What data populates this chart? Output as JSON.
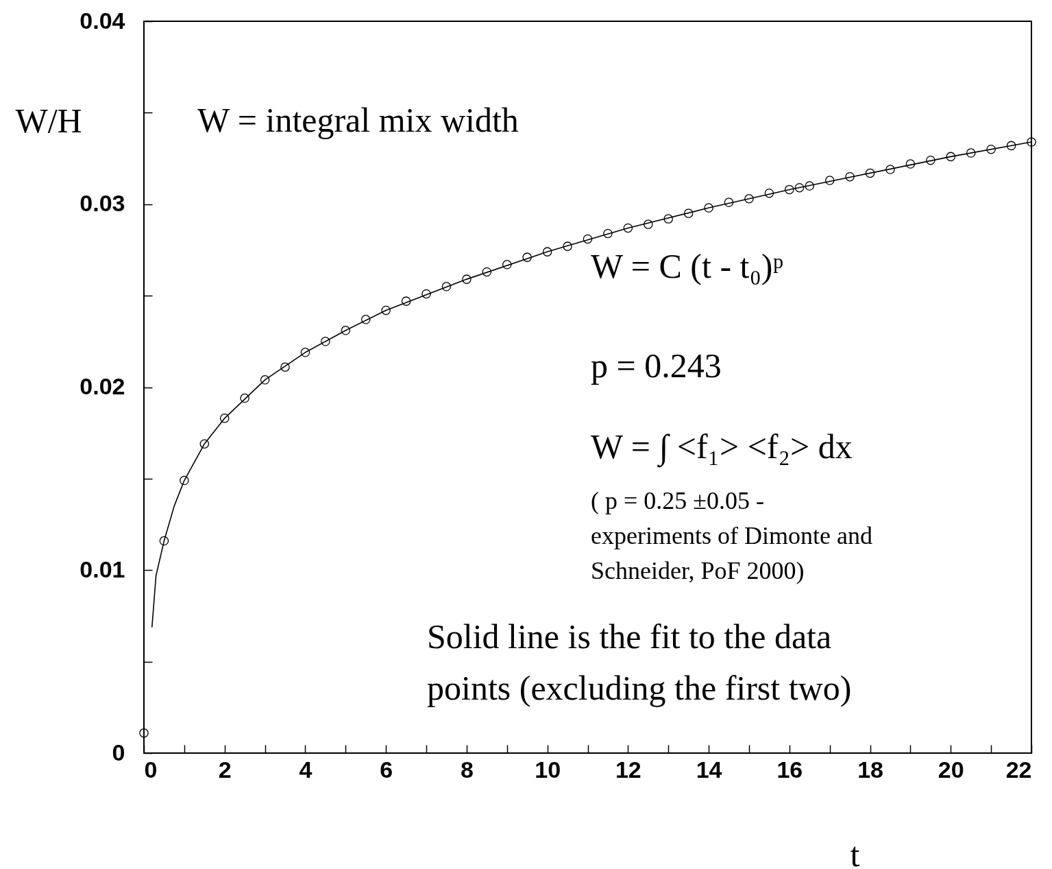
{
  "chart_data": {
    "type": "scatter",
    "xlabel": "t",
    "ylabel": "W/H",
    "xlim": [
      0,
      22
    ],
    "ylim": [
      0,
      0.04
    ],
    "xticks": [
      0,
      {
        "value": 1,
        "label": null
      },
      2,
      {
        "value": 3,
        "label": null
      },
      4,
      {
        "value": 5,
        "label": null
      },
      6,
      {
        "value": 7,
        "label": null
      },
      8,
      {
        "value": 9,
        "label": null
      },
      10,
      {
        "value": 11,
        "label": null
      },
      12,
      {
        "value": 13,
        "label": null
      },
      14,
      {
        "value": 15,
        "label": null
      },
      16,
      {
        "value": 17,
        "label": null
      },
      18,
      {
        "value": 19,
        "label": null
      },
      20,
      {
        "value": 21,
        "label": null
      },
      22
    ],
    "yticks": [
      0,
      {
        "value": 0.005,
        "label": null
      },
      0.01,
      {
        "value": 0.015,
        "label": null
      },
      0.02,
      {
        "value": 0.025,
        "label": null
      },
      0.03,
      {
        "value": 0.035,
        "label": null
      },
      0.04
    ],
    "grid": false,
    "marker": "circle",
    "line_style": "solid",
    "series": [
      {
        "color": "#000000",
        "x": [
          0,
          0.5,
          1,
          1.5,
          2,
          2.5,
          3,
          3.5,
          4,
          4.5,
          5,
          5.5,
          6,
          6.5,
          7,
          7.5,
          8,
          8.5,
          9,
          9.5,
          10,
          10.5,
          11,
          11.5,
          12,
          12.5,
          13,
          13.5,
          14,
          14.5,
          15,
          15.5,
          16,
          16.25,
          16.5,
          17,
          17.5,
          18,
          18.5,
          19,
          19.5,
          20,
          20.5,
          21,
          21.5,
          22
        ],
        "values": [
          0.0011,
          0.0116,
          0.0149,
          0.0169,
          0.0183,
          0.0194,
          0.0204,
          0.0211,
          0.0219,
          0.0225,
          0.0231,
          0.0237,
          0.0242,
          0.0247,
          0.0251,
          0.0255,
          0.0259,
          0.0263,
          0.0267,
          0.0271,
          0.0274,
          0.0277,
          0.0281,
          0.0284,
          0.0287,
          0.0289,
          0.0292,
          0.0295,
          0.0298,
          0.0301,
          0.0303,
          0.0306,
          0.0308,
          0.0309,
          0.031,
          0.0313,
          0.0315,
          0.0317,
          0.0319,
          0.0322,
          0.0324,
          0.0326,
          0.0328,
          0.033,
          0.0332,
          0.0334
        ]
      },
      {
        "type": "line",
        "marker": "none",
        "color": "#000000",
        "x": [
          0.2,
          0.3,
          0.5,
          0.75,
          1,
          1.5,
          2,
          3,
          4,
          5,
          6,
          8,
          10,
          12,
          14,
          16,
          18,
          20,
          22
        ],
        "values": [
          0.0069,
          0.0097,
          0.0116,
          0.0135,
          0.0149,
          0.0169,
          0.0183,
          0.0204,
          0.0219,
          0.0231,
          0.0242,
          0.0259,
          0.0274,
          0.0287,
          0.0298,
          0.0308,
          0.0317,
          0.0326,
          0.0334
        ]
      }
    ],
    "annotations": [
      "W = integral mix width",
      "W = C (t - t₀)ᵖ",
      "p = 0.243",
      "W = ∫ <f₁> <f₂> dx",
      "( p = 0.25 ±0.05 -\nexperiments of Dimonte and\nSchneider, PoF 2000)",
      "Solid line is the fit to the data\npoints (excluding the first two)"
    ]
  }
}
